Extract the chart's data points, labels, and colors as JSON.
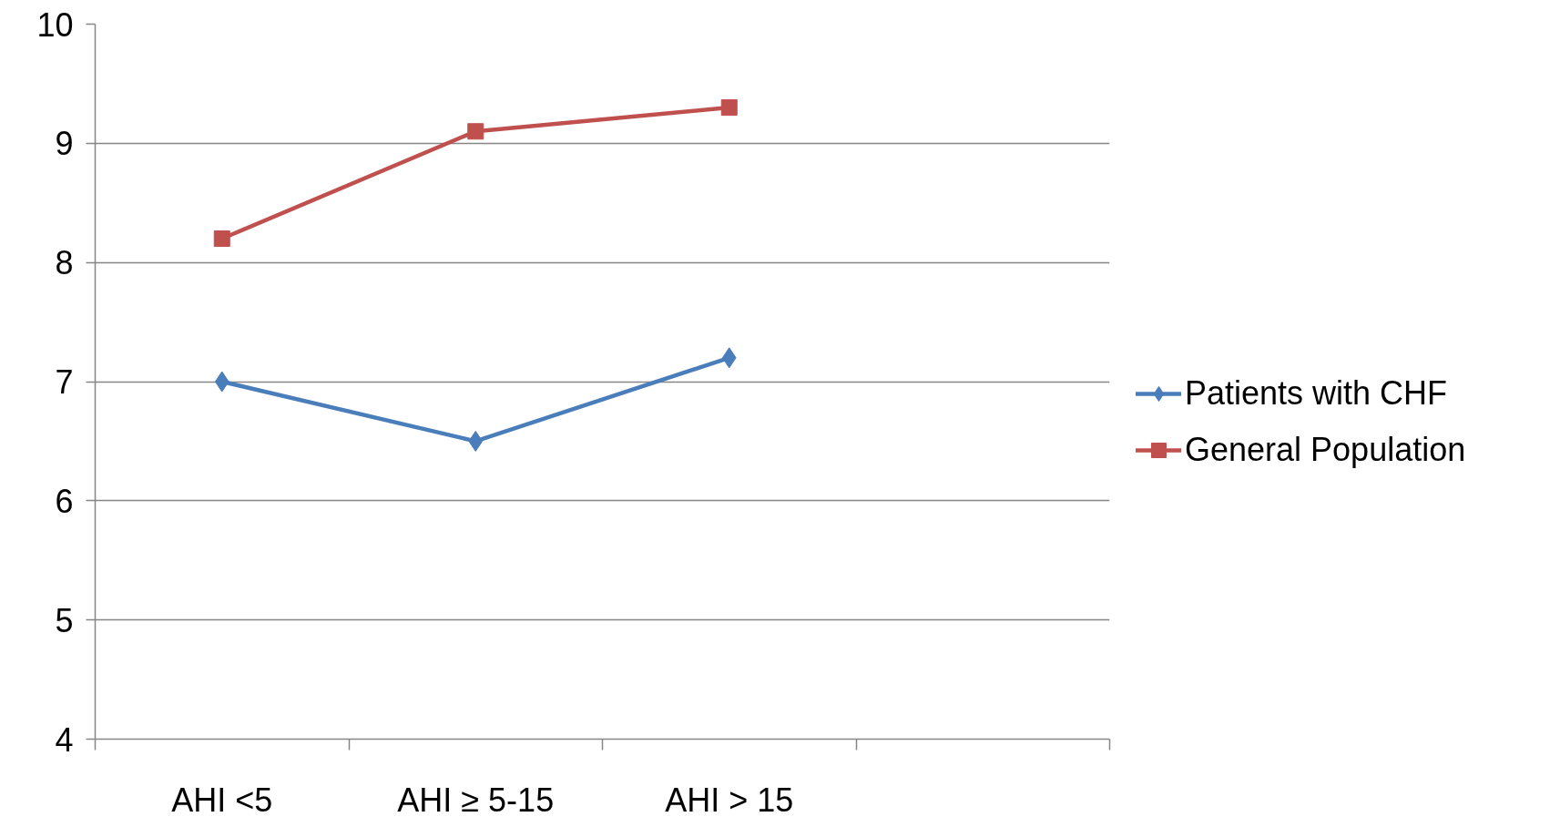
{
  "chart_data": {
    "type": "line",
    "categories": [
      "AHI <5",
      "AHI ≥ 5-15",
      "AHI > 15",
      null
    ],
    "series": [
      {
        "name": "Patients with CHF",
        "color": "#4a7ebb",
        "marker": "diamond",
        "values": [
          7.0,
          6.5,
          7.2,
          null
        ]
      },
      {
        "name": "General Population",
        "color": "#c0504d",
        "marker": "square",
        "values": [
          8.2,
          9.1,
          9.3,
          null
        ]
      }
    ],
    "ylim": [
      4,
      10
    ],
    "yticks": [
      4,
      5,
      6,
      7,
      8,
      9,
      10
    ],
    "grid": "y",
    "legend": "right",
    "line_style": "solid"
  }
}
